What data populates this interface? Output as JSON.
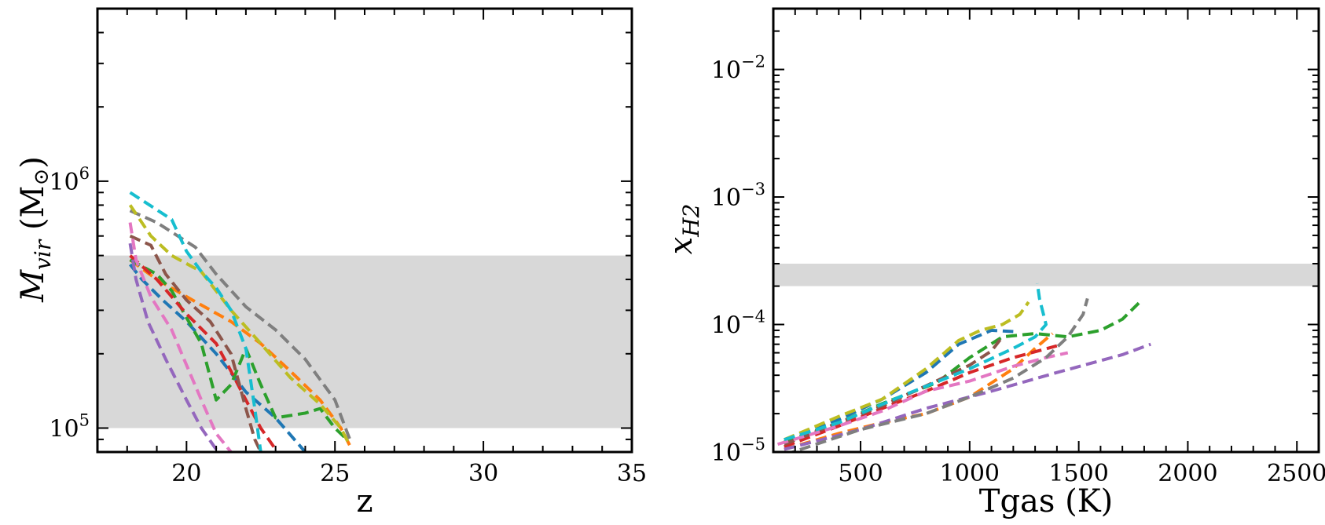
{
  "chart_data": [
    {
      "type": "line",
      "xlabel": "z",
      "ylabel": "M",
      "ylabel_sub": "vir",
      "ylabel_unit": "(M",
      "ylabel_unit_sym": "⊙",
      "ylabel_unit_close": ")",
      "xlim": [
        17,
        35
      ],
      "ylim": [
        80000,
        5000000
      ],
      "yscale": "log",
      "grid": false,
      "xticks": [
        20,
        25,
        30,
        35
      ],
      "yticks": [
        {
          "value": 100000,
          "base": "10",
          "exp": "5"
        },
        {
          "value": 1000000,
          "base": "10",
          "exp": "6"
        }
      ],
      "band": {
        "y0": 100000,
        "y1": 500000,
        "color": "#d8d8d8"
      },
      "series": [
        {
          "color": "#1f77b4",
          "points": [
            [
              18.1,
              460000
            ],
            [
              18.5,
              400000
            ],
            [
              19.2,
              330000
            ],
            [
              20.0,
              270000
            ],
            [
              21.0,
              200000
            ],
            [
              22.0,
              140000
            ],
            [
              23.0,
              110000
            ],
            [
              24.0,
              80000
            ]
          ]
        },
        {
          "color": "#ff7f0e",
          "points": [
            [
              18.1,
              480000
            ],
            [
              19.0,
              400000
            ],
            [
              20.2,
              330000
            ],
            [
              21.5,
              270000
            ],
            [
              22.5,
              220000
            ],
            [
              23.5,
              170000
            ],
            [
              24.5,
              130000
            ],
            [
              25.2,
              100000
            ],
            [
              25.5,
              85000
            ]
          ]
        },
        {
          "color": "#2ca02c",
          "points": [
            [
              18.1,
              480000
            ],
            [
              19.0,
              420000
            ],
            [
              19.5,
              360000
            ],
            [
              20.0,
              280000
            ],
            [
              20.5,
              220000
            ],
            [
              21.0,
              130000
            ],
            [
              21.5,
              150000
            ],
            [
              22.0,
              210000
            ],
            [
              22.5,
              150000
            ],
            [
              23.0,
              110000
            ],
            [
              24.0,
              115000
            ],
            [
              24.5,
              120000
            ],
            [
              25.0,
              100000
            ],
            [
              25.4,
              90000
            ]
          ]
        },
        {
          "color": "#d62728",
          "points": [
            [
              18.1,
              500000
            ],
            [
              19.0,
              400000
            ],
            [
              20.0,
              290000
            ],
            [
              21.0,
              220000
            ],
            [
              21.5,
              170000
            ],
            [
              22.0,
              130000
            ],
            [
              22.5,
              100000
            ],
            [
              23.0,
              82000
            ]
          ]
        },
        {
          "color": "#9467bd",
          "points": [
            [
              18.1,
              560000
            ],
            [
              18.3,
              400000
            ],
            [
              18.7,
              270000
            ],
            [
              19.3,
              190000
            ],
            [
              20.0,
              130000
            ],
            [
              20.5,
              100000
            ],
            [
              21.0,
              82000
            ]
          ]
        },
        {
          "color": "#8c564b",
          "points": [
            [
              18.1,
              600000
            ],
            [
              18.8,
              550000
            ],
            [
              19.3,
              420000
            ],
            [
              20.0,
              330000
            ],
            [
              20.8,
              270000
            ],
            [
              21.5,
              200000
            ],
            [
              22.0,
              120000
            ],
            [
              22.3,
              90000
            ],
            [
              22.5,
              80000
            ]
          ]
        },
        {
          "color": "#e377c2",
          "points": [
            [
              18.1,
              680000
            ],
            [
              18.3,
              480000
            ],
            [
              18.8,
              340000
            ],
            [
              19.5,
              250000
            ],
            [
              20.0,
              180000
            ],
            [
              20.5,
              130000
            ],
            [
              21.0,
              95000
            ],
            [
              21.5,
              80000
            ]
          ]
        },
        {
          "color": "#7f7f7f",
          "points": [
            [
              18.1,
              760000
            ],
            [
              19.0,
              680000
            ],
            [
              20.3,
              540000
            ],
            [
              21.0,
              420000
            ],
            [
              22.0,
              310000
            ],
            [
              23.0,
              250000
            ],
            [
              24.0,
              190000
            ],
            [
              25.0,
              130000
            ],
            [
              25.5,
              90000
            ]
          ]
        },
        {
          "color": "#bcbd22",
          "points": [
            [
              18.1,
              800000
            ],
            [
              18.8,
              600000
            ],
            [
              19.5,
              500000
            ],
            [
              20.5,
              430000
            ],
            [
              21.5,
              300000
            ],
            [
              22.5,
              220000
            ],
            [
              23.5,
              160000
            ],
            [
              24.5,
              125000
            ],
            [
              25.2,
              100000
            ],
            [
              25.5,
              85000
            ]
          ]
        },
        {
          "color": "#17becf",
          "points": [
            [
              18.1,
              900000
            ],
            [
              19.5,
              700000
            ],
            [
              20.0,
              520000
            ],
            [
              20.5,
              430000
            ],
            [
              21.0,
              370000
            ],
            [
              21.5,
              300000
            ],
            [
              22.0,
              210000
            ],
            [
              22.3,
              120000
            ],
            [
              22.5,
              80000
            ]
          ]
        }
      ]
    },
    {
      "type": "line",
      "xlabel": "Tgas (K)",
      "ylabel": "x",
      "ylabel_sub": "H2",
      "xlim": [
        100,
        2600
      ],
      "ylim": [
        1e-05,
        0.03
      ],
      "yscale": "log",
      "grid": false,
      "xticks": [
        500,
        1000,
        1500,
        2000,
        2500
      ],
      "yticks": [
        {
          "value": 1e-05,
          "base": "10",
          "exp": "−5"
        },
        {
          "value": 0.0001,
          "base": "10",
          "exp": "−4"
        },
        {
          "value": 0.001,
          "base": "10",
          "exp": "−3"
        },
        {
          "value": 0.01,
          "base": "10",
          "exp": "−2"
        }
      ],
      "band": {
        "y0": 0.0002,
        "y1": 0.0003,
        "color": "#d8d8d8"
      },
      "series": [
        {
          "color": "#1f77b4",
          "points": [
            [
              150,
              1.25e-05
            ],
            [
              400,
              1.8e-05
            ],
            [
              600,
              2.6e-05
            ],
            [
              800,
              4.2e-05
            ],
            [
              950,
              7e-05
            ],
            [
              1100,
              9e-05
            ],
            [
              1200,
              8.8e-05
            ]
          ]
        },
        {
          "color": "#ff7f0e",
          "points": [
            [
              150,
              1.05e-05
            ],
            [
              400,
              1.4e-05
            ],
            [
              600,
              1.7e-05
            ],
            [
              800,
              2e-05
            ],
            [
              1000,
              2.7e-05
            ],
            [
              1200,
              4.5e-05
            ],
            [
              1300,
              6.5e-05
            ],
            [
              1380,
              8.5e-05
            ]
          ]
        },
        {
          "color": "#2ca02c",
          "points": [
            [
              150,
              1.2e-05
            ],
            [
              400,
              1.7e-05
            ],
            [
              600,
              2.4e-05
            ],
            [
              850,
              3.5e-05
            ],
            [
              1000,
              5.5e-05
            ],
            [
              1150,
              8e-05
            ],
            [
              1300,
              8.5e-05
            ],
            [
              1450,
              8e-05
            ],
            [
              1600,
              9e-05
            ],
            [
              1700,
              0.00011
            ],
            [
              1780,
              0.00015
            ]
          ]
        },
        {
          "color": "#d62728",
          "points": [
            [
              150,
              1.1e-05
            ],
            [
              400,
              1.6e-05
            ],
            [
              600,
              2.2e-05
            ],
            [
              800,
              3e-05
            ],
            [
              1000,
              4.2e-05
            ],
            [
              1200,
              5.5e-05
            ],
            [
              1400,
              6.8e-05
            ]
          ]
        },
        {
          "color": "#9467bd",
          "points": [
            [
              150,
              1.05e-05
            ],
            [
              500,
              1.5e-05
            ],
            [
              800,
              2.2e-05
            ],
            [
              1100,
              3e-05
            ],
            [
              1400,
              4.2e-05
            ],
            [
              1700,
              5.8e-05
            ],
            [
              1830,
              7e-05
            ]
          ]
        },
        {
          "color": "#8c564b",
          "points": [
            [
              150,
              1.15e-05
            ],
            [
              400,
              1.7e-05
            ],
            [
              600,
              2.3e-05
            ],
            [
              800,
              3.3e-05
            ],
            [
              1000,
              4.8e-05
            ],
            [
              1100,
              6.2e-05
            ],
            [
              1150,
              8e-05
            ]
          ]
        },
        {
          "color": "#e377c2",
          "points": [
            [
              120,
              1.15e-05
            ],
            [
              400,
              1.6e-05
            ],
            [
              600,
              2.1e-05
            ],
            [
              800,
              3e-05
            ],
            [
              1000,
              3.6e-05
            ],
            [
              1200,
              4.7e-05
            ],
            [
              1350,
              5.5e-05
            ],
            [
              1450,
              6e-05
            ]
          ]
        },
        {
          "color": "#7f7f7f",
          "points": [
            [
              150,
              9.5e-06
            ],
            [
              500,
              1.5e-05
            ],
            [
              800,
              2e-05
            ],
            [
              1000,
              2.7e-05
            ],
            [
              1200,
              3.8e-05
            ],
            [
              1350,
              5.5e-05
            ],
            [
              1450,
              8e-05
            ],
            [
              1520,
              0.00012
            ],
            [
              1540,
              0.00016
            ]
          ]
        },
        {
          "color": "#bcbd22",
          "points": [
            [
              150,
              1.25e-05
            ],
            [
              400,
              1.9e-05
            ],
            [
              600,
              2.6e-05
            ],
            [
              800,
              4.5e-05
            ],
            [
              950,
              7.5e-05
            ],
            [
              1050,
              9e-05
            ],
            [
              1150,
              0.0001
            ],
            [
              1230,
              0.00012
            ],
            [
              1270,
              0.00015
            ]
          ]
        },
        {
          "color": "#17becf",
          "points": [
            [
              150,
              1.25e-05
            ],
            [
              400,
              1.7e-05
            ],
            [
              700,
              2.8e-05
            ],
            [
              1000,
              4.5e-05
            ],
            [
              1200,
              6.5e-05
            ],
            [
              1300,
              8e-05
            ],
            [
              1350,
              0.0001
            ],
            [
              1320,
              0.00016
            ],
            [
              1310,
              0.00021
            ]
          ]
        }
      ]
    }
  ]
}
